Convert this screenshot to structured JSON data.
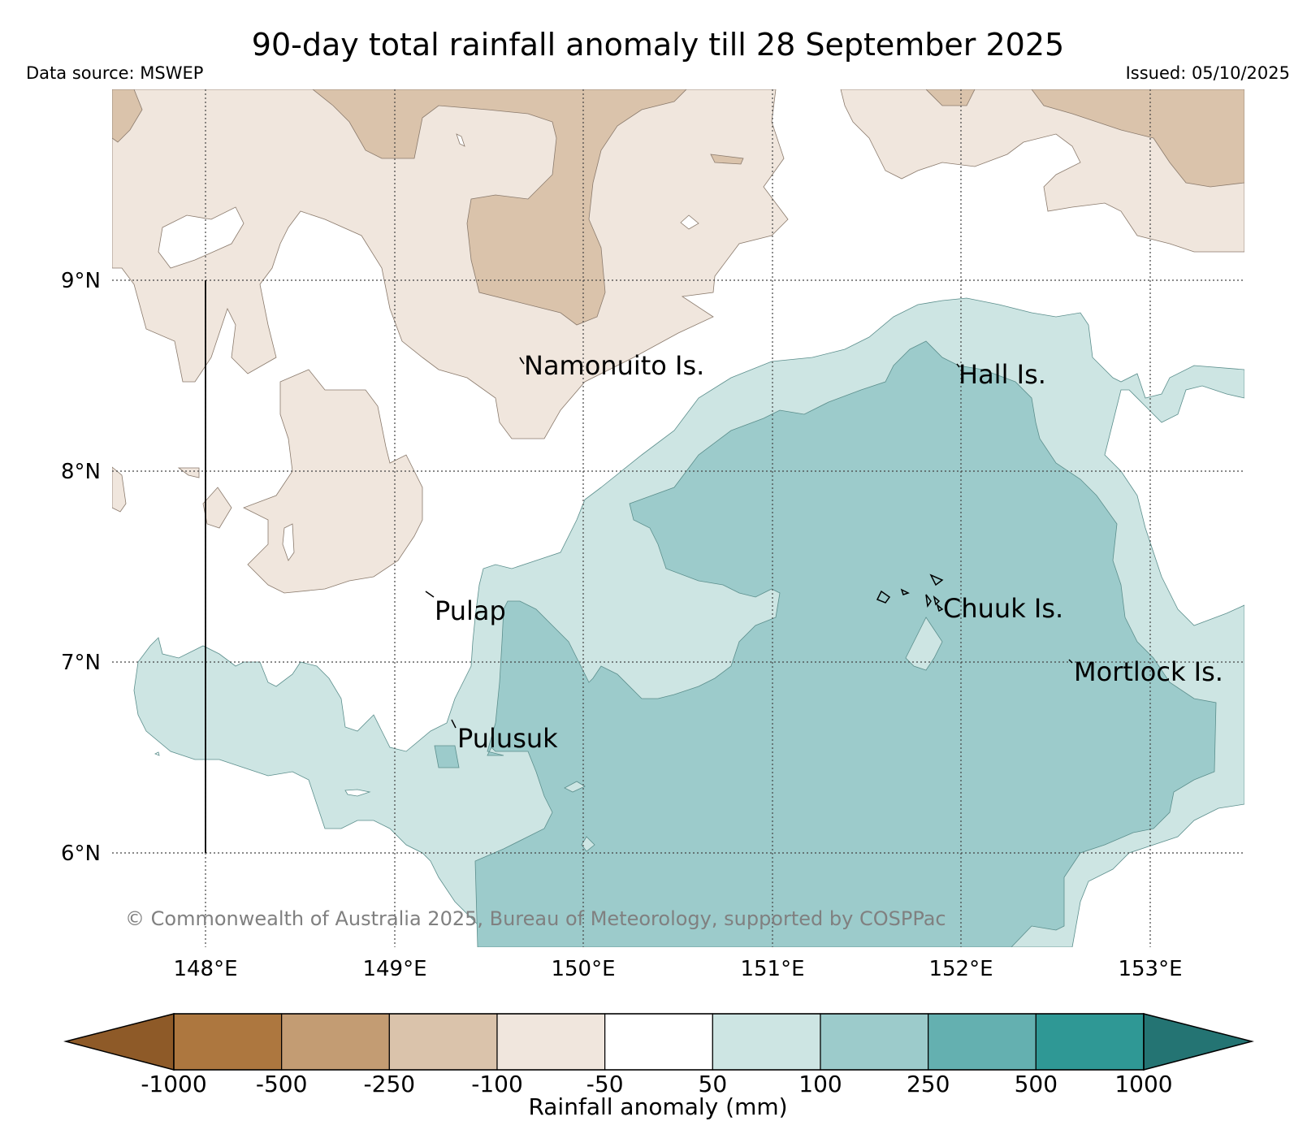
{
  "title": "90-day total rainfall anomaly till 28 September 2025",
  "source": "Data source: MSWEP",
  "issued": "Issued: 05/10/2025",
  "copyright": "© Commonwealth of Australia 2025, Bureau of Meteorology, supported by COSPPac",
  "lat_labels": [
    "9°N",
    "8°N",
    "7°N",
    "6°N"
  ],
  "lon_labels": [
    "148°E",
    "149°E",
    "150°E",
    "151°E",
    "152°E",
    "153°E"
  ],
  "places": [
    "Namonuito Is.",
    "Hall Is.",
    "Pulap",
    "Chuuk Is.",
    "Mortlock Is.",
    "Pulusuk"
  ],
  "colorbar": {
    "title": "Rainfall anomaly (mm)",
    "ticks": [
      "-1000",
      "-500",
      "-250",
      "-100",
      "-50",
      "50",
      "100",
      "250",
      "500",
      "1000"
    ],
    "colors": [
      "#8e5a28",
      "#ad773f",
      "#c39c73",
      "#dac3ab",
      "#f0e6dd",
      "#ffffff",
      "#cde5e3",
      "#9ccbcb",
      "#64b0b0",
      "#2f9895",
      "#247473"
    ]
  }
}
